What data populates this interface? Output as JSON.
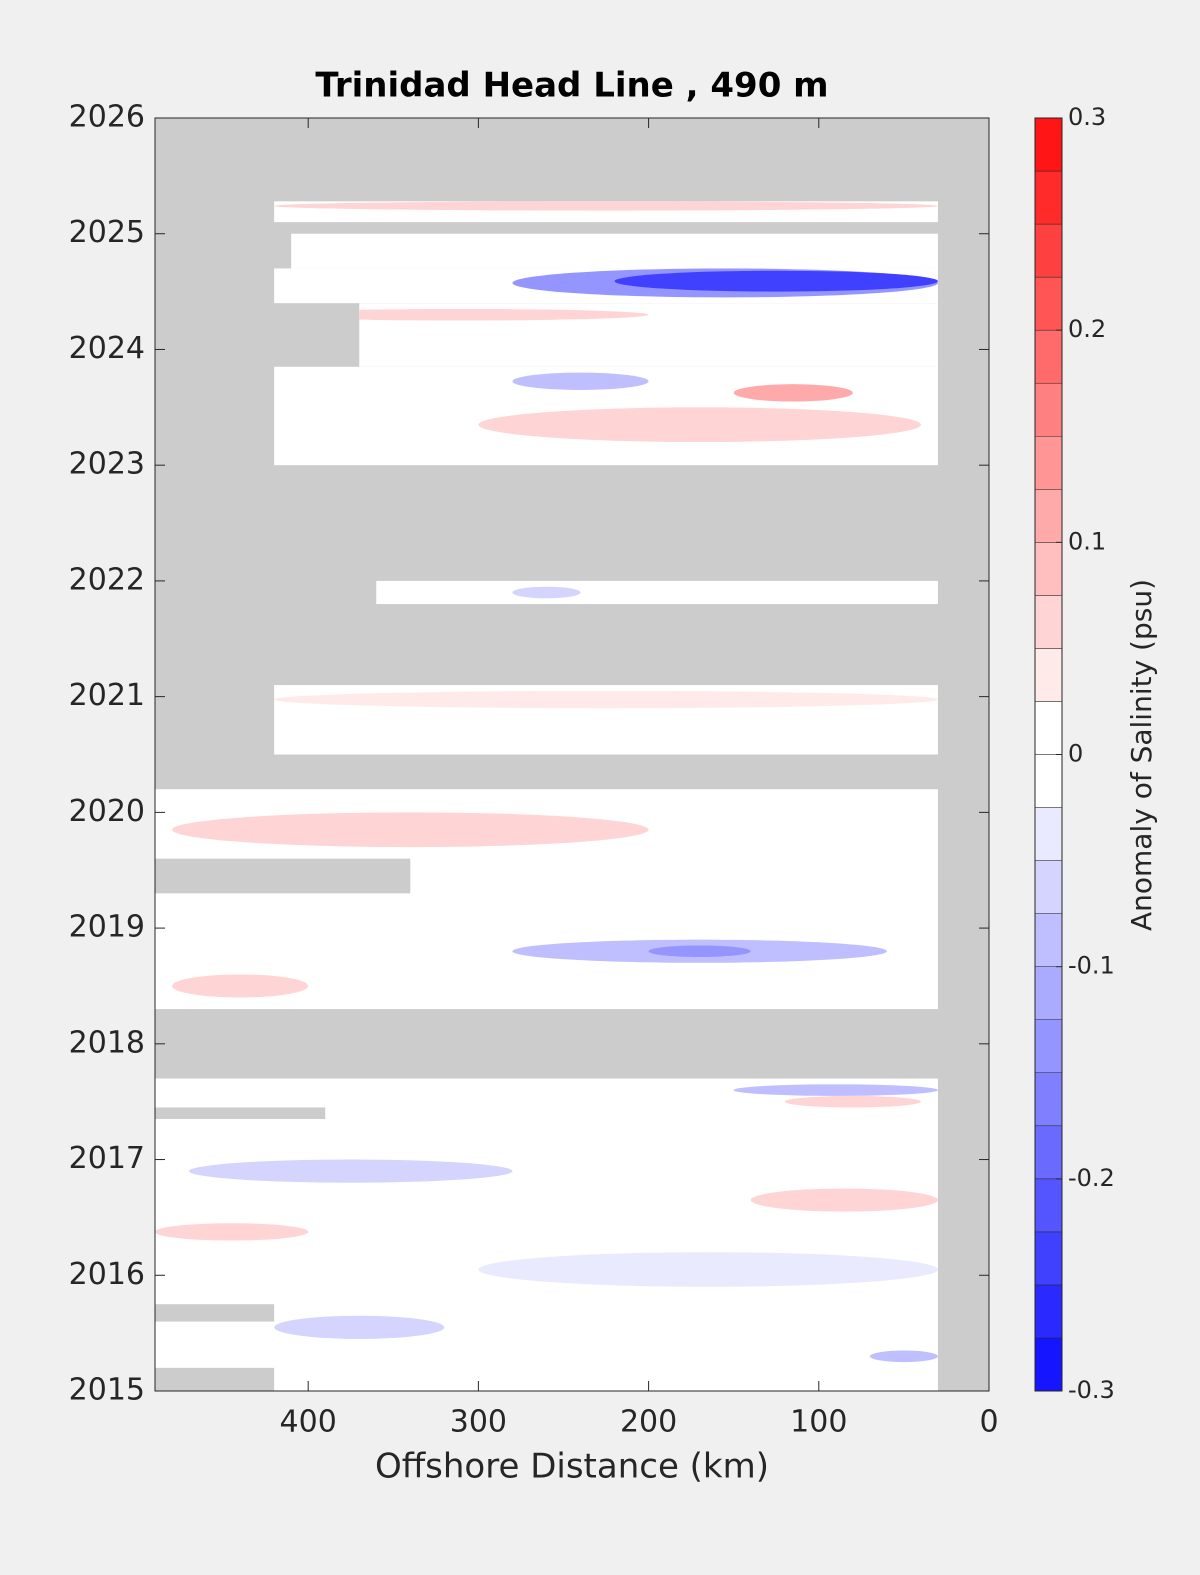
{
  "chart_data": {
    "type": "contourf",
    "title": "Trinidad Head Line , 490 m",
    "xlabel": "Offshore Distance (km)",
    "colorbar_label": "Anomaly of Salinity (psu)",
    "xlim": [
      490,
      0
    ],
    "xticks": [
      400,
      300,
      200,
      100,
      0
    ],
    "ylim": [
      2015,
      2026
    ],
    "yticks": [
      2015,
      2016,
      2017,
      2018,
      2019,
      2020,
      2021,
      2022,
      2023,
      2024,
      2025,
      2026
    ],
    "clim": [
      -0.3,
      0.3
    ],
    "cticks": [
      -0.3,
      -0.2,
      -0.1,
      0,
      0.1,
      0.2,
      0.3
    ],
    "levels": [
      -0.3,
      -0.275,
      -0.25,
      -0.225,
      -0.2,
      -0.175,
      -0.15,
      -0.125,
      -0.1,
      -0.075,
      -0.05,
      -0.025,
      0,
      0.025,
      0.05,
      0.075,
      0.1,
      0.125,
      0.15,
      0.175,
      0.2,
      0.225,
      0.25,
      0.275,
      0.3
    ],
    "missing_color": "#cccccc",
    "coverage": [
      {
        "x": [
          490,
          30
        ],
        "y": [
          2015,
          2017.7
        ]
      },
      {
        "x": [
          490,
          30
        ],
        "y": [
          2018.3,
          2020.2
        ]
      },
      {
        "x": [
          420,
          30
        ],
        "y": [
          2020.5,
          2021.1
        ]
      },
      {
        "x": [
          360,
          30
        ],
        "y": [
          2021.8,
          2022
        ]
      },
      {
        "x": [
          420,
          30
        ],
        "y": [
          2023,
          2023.85
        ]
      },
      {
        "x": [
          370,
          30
        ],
        "y": [
          2023.85,
          2024.4
        ]
      },
      {
        "x": [
          420,
          30
        ],
        "y": [
          2024.4,
          2024.7
        ]
      },
      {
        "x": [
          410,
          30
        ],
        "y": [
          2024.7,
          2025
        ]
      },
      {
        "x": [
          420,
          30
        ],
        "y": [
          2025.1,
          2025.28
        ]
      }
    ],
    "gaps": [
      {
        "x": [
          490,
          340
        ],
        "y": [
          2019.3,
          2019.6
        ]
      },
      {
        "x": [
          490,
          420
        ],
        "y": [
          2015.6,
          2015.75
        ]
      },
      {
        "x": [
          490,
          420
        ],
        "y": [
          2015,
          2015.2
        ]
      },
      {
        "x": [
          490,
          390
        ],
        "y": [
          2017.35,
          2017.45
        ]
      }
    ],
    "anomalies": [
      {
        "x": [
          30,
          420
        ],
        "y": [
          2025.2,
          2025.28
        ],
        "value": 0.05
      },
      {
        "x": [
          30,
          280
        ],
        "y": [
          2024.45,
          2024.7
        ],
        "value": -0.15
      },
      {
        "x": [
          30,
          220
        ],
        "y": [
          2024.5,
          2024.68
        ],
        "value": -0.25
      },
      {
        "x": [
          200,
          420
        ],
        "y": [
          2024.25,
          2024.35
        ],
        "value": 0.05
      },
      {
        "x": [
          40,
          300
        ],
        "y": [
          2023.2,
          2023.5
        ],
        "value": 0.05
      },
      {
        "x": [
          80,
          150
        ],
        "y": [
          2023.55,
          2023.7
        ],
        "value": 0.1
      },
      {
        "x": [
          200,
          280
        ],
        "y": [
          2023.65,
          2023.8
        ],
        "value": -0.1
      },
      {
        "x": [
          30,
          420
        ],
        "y": [
          2020.9,
          2021.05
        ],
        "value": 0.04
      },
      {
        "x": [
          240,
          280
        ],
        "y": [
          2021.85,
          2021.95
        ],
        "value": -0.06
      },
      {
        "x": [
          200,
          480
        ],
        "y": [
          2019.7,
          2020.0
        ],
        "value": 0.06
      },
      {
        "x": [
          60,
          280
        ],
        "y": [
          2018.7,
          2018.9
        ],
        "value": -0.1
      },
      {
        "x": [
          140,
          200
        ],
        "y": [
          2018.75,
          2018.85
        ],
        "value": -0.15
      },
      {
        "x": [
          400,
          480
        ],
        "y": [
          2018.4,
          2018.6
        ],
        "value": 0.06
      },
      {
        "x": [
          40,
          120
        ],
        "y": [
          2017.45,
          2017.55
        ],
        "value": 0.06
      },
      {
        "x": [
          30,
          150
        ],
        "y": [
          2017.55,
          2017.65
        ],
        "value": -0.08
      },
      {
        "x": [
          280,
          470
        ],
        "y": [
          2016.8,
          2017.0
        ],
        "value": -0.06
      },
      {
        "x": [
          30,
          140
        ],
        "y": [
          2016.55,
          2016.75
        ],
        "value": 0.07
      },
      {
        "x": [
          30,
          300
        ],
        "y": [
          2015.9,
          2016.2
        ],
        "value": -0.05
      },
      {
        "x": [
          320,
          420
        ],
        "y": [
          2015.45,
          2015.65
        ],
        "value": -0.07
      },
      {
        "x": [
          30,
          70
        ],
        "y": [
          2015.25,
          2015.35
        ],
        "value": -0.08
      },
      {
        "x": [
          400,
          490
        ],
        "y": [
          2016.3,
          2016.45
        ],
        "value": 0.07
      }
    ]
  }
}
